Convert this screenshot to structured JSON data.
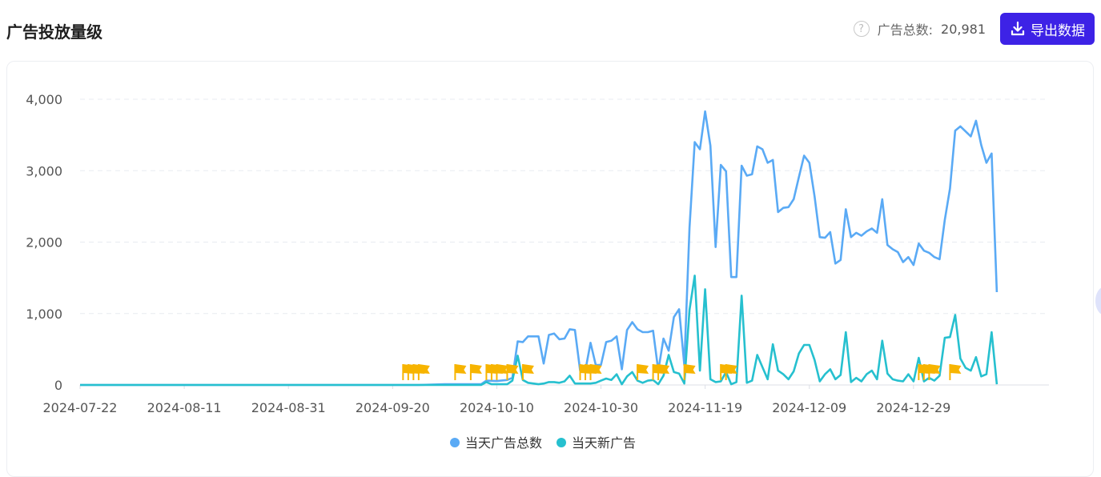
{
  "header": {
    "title": "广告投放量级",
    "total_label": "广告总数:",
    "total_value": "20,981",
    "export_label": "导出数据",
    "export_icon": "download-icon",
    "help_icon": "question-circle-icon"
  },
  "colors": {
    "series_total": "#5aaaf5",
    "series_new": "#26c0cf",
    "flag": "#f7b400",
    "export_button": "#3d22e6"
  },
  "chart_data": {
    "type": "line",
    "title": "",
    "xlabel": "",
    "ylabel": "",
    "ylim": [
      0,
      4000
    ],
    "yticks": [
      0,
      1000,
      2000,
      3000,
      4000
    ],
    "ytick_labels": [
      "0",
      "1,000",
      "2,000",
      "3,000",
      "4,000"
    ],
    "x_start": "2024-07-22",
    "x_end": "2025-01-24",
    "xtick_labels": [
      "2024-07-22",
      "2024-08-11",
      "2024-08-31",
      "2024-09-20",
      "2024-10-10",
      "2024-10-30",
      "2024-11-19",
      "2024-12-09",
      "2024-12-29"
    ],
    "grid": true,
    "legend_position": "bottom",
    "series": [
      {
        "name": "当天广告总数",
        "color": "#5aaaf5",
        "points": [
          [
            "2024-07-22",
            0
          ],
          [
            "2024-09-25",
            0
          ],
          [
            "2024-09-30",
            10
          ],
          [
            "2024-10-07",
            10
          ],
          [
            "2024-10-08",
            60
          ],
          [
            "2024-10-10",
            55
          ],
          [
            "2024-10-12",
            70
          ],
          [
            "2024-10-13",
            100
          ],
          [
            "2024-10-14",
            610
          ],
          [
            "2024-10-15",
            600
          ],
          [
            "2024-10-16",
            680
          ],
          [
            "2024-10-18",
            680
          ],
          [
            "2024-10-19",
            300
          ],
          [
            "2024-10-20",
            700
          ],
          [
            "2024-10-21",
            720
          ],
          [
            "2024-10-22",
            640
          ],
          [
            "2024-10-23",
            650
          ],
          [
            "2024-10-24",
            780
          ],
          [
            "2024-10-25",
            770
          ],
          [
            "2024-10-26",
            200
          ],
          [
            "2024-10-27",
            200
          ],
          [
            "2024-10-28",
            590
          ],
          [
            "2024-10-29",
            280
          ],
          [
            "2024-10-30",
            280
          ],
          [
            "2024-10-31",
            600
          ],
          [
            "2024-11-01",
            620
          ],
          [
            "2024-11-02",
            680
          ],
          [
            "2024-11-03",
            220
          ],
          [
            "2024-11-04",
            770
          ],
          [
            "2024-11-05",
            880
          ],
          [
            "2024-11-06",
            780
          ],
          [
            "2024-11-07",
            740
          ],
          [
            "2024-11-08",
            740
          ],
          [
            "2024-11-09",
            760
          ],
          [
            "2024-11-10",
            200
          ],
          [
            "2024-11-11",
            650
          ],
          [
            "2024-11-12",
            480
          ],
          [
            "2024-11-13",
            950
          ],
          [
            "2024-11-14",
            1060
          ],
          [
            "2024-11-15",
            280
          ],
          [
            "2024-11-16",
            2200
          ],
          [
            "2024-11-17",
            3400
          ],
          [
            "2024-11-18",
            3300
          ],
          [
            "2024-11-19",
            3830
          ],
          [
            "2024-11-20",
            3350
          ],
          [
            "2024-11-21",
            1930
          ],
          [
            "2024-11-22",
            3080
          ],
          [
            "2024-11-23",
            2990
          ],
          [
            "2024-11-24",
            1510
          ],
          [
            "2024-11-25",
            1510
          ],
          [
            "2024-11-26",
            3070
          ],
          [
            "2024-11-27",
            2930
          ],
          [
            "2024-11-28",
            2950
          ],
          [
            "2024-11-29",
            3340
          ],
          [
            "2024-11-30",
            3300
          ],
          [
            "2024-12-01",
            3110
          ],
          [
            "2024-12-02",
            3150
          ],
          [
            "2024-12-03",
            2420
          ],
          [
            "2024-12-04",
            2480
          ],
          [
            "2024-12-05",
            2490
          ],
          [
            "2024-12-06",
            2600
          ],
          [
            "2024-12-07",
            2910
          ],
          [
            "2024-12-08",
            3210
          ],
          [
            "2024-12-09",
            3110
          ],
          [
            "2024-12-10",
            2640
          ],
          [
            "2024-12-11",
            2070
          ],
          [
            "2024-12-12",
            2060
          ],
          [
            "2024-12-13",
            2140
          ],
          [
            "2024-12-14",
            1700
          ],
          [
            "2024-12-15",
            1750
          ],
          [
            "2024-12-16",
            2460
          ],
          [
            "2024-12-17",
            2070
          ],
          [
            "2024-12-18",
            2130
          ],
          [
            "2024-12-19",
            2090
          ],
          [
            "2024-12-20",
            2150
          ],
          [
            "2024-12-21",
            2190
          ],
          [
            "2024-12-22",
            2130
          ],
          [
            "2024-12-23",
            2600
          ],
          [
            "2024-12-24",
            1960
          ],
          [
            "2024-12-25",
            1900
          ],
          [
            "2024-12-26",
            1860
          ],
          [
            "2024-12-27",
            1720
          ],
          [
            "2024-12-28",
            1790
          ],
          [
            "2024-12-29",
            1680
          ],
          [
            "2024-12-30",
            1980
          ],
          [
            "2024-12-31",
            1880
          ],
          [
            "2025-01-01",
            1850
          ],
          [
            "2025-01-02",
            1790
          ],
          [
            "2025-01-03",
            1760
          ],
          [
            "2025-01-04",
            2310
          ],
          [
            "2025-01-05",
            2750
          ],
          [
            "2025-01-06",
            3560
          ],
          [
            "2025-01-07",
            3620
          ],
          [
            "2025-01-08",
            3550
          ],
          [
            "2025-01-09",
            3480
          ],
          [
            "2025-01-10",
            3700
          ],
          [
            "2025-01-11",
            3360
          ],
          [
            "2025-01-12",
            3110
          ],
          [
            "2025-01-13",
            3240
          ],
          [
            "2025-01-14",
            1300
          ]
        ]
      },
      {
        "name": "当天新广告",
        "color": "#26c0cf",
        "points": [
          [
            "2024-07-22",
            0
          ],
          [
            "2024-10-07",
            0
          ],
          [
            "2024-10-08",
            40
          ],
          [
            "2024-10-09",
            10
          ],
          [
            "2024-10-12",
            10
          ],
          [
            "2024-10-13",
            60
          ],
          [
            "2024-10-14",
            410
          ],
          [
            "2024-10-15",
            70
          ],
          [
            "2024-10-16",
            30
          ],
          [
            "2024-10-18",
            10
          ],
          [
            "2024-10-19",
            20
          ],
          [
            "2024-10-20",
            40
          ],
          [
            "2024-10-21",
            40
          ],
          [
            "2024-10-22",
            30
          ],
          [
            "2024-10-23",
            50
          ],
          [
            "2024-10-24",
            130
          ],
          [
            "2024-10-25",
            20
          ],
          [
            "2024-10-28",
            20
          ],
          [
            "2024-10-29",
            30
          ],
          [
            "2024-10-30",
            60
          ],
          [
            "2024-10-31",
            90
          ],
          [
            "2024-11-01",
            70
          ],
          [
            "2024-11-02",
            150
          ],
          [
            "2024-11-03",
            10
          ],
          [
            "2024-11-04",
            120
          ],
          [
            "2024-11-05",
            180
          ],
          [
            "2024-11-06",
            60
          ],
          [
            "2024-11-07",
            30
          ],
          [
            "2024-11-08",
            60
          ],
          [
            "2024-11-09",
            70
          ],
          [
            "2024-11-10",
            10
          ],
          [
            "2024-11-11",
            130
          ],
          [
            "2024-11-12",
            420
          ],
          [
            "2024-11-13",
            180
          ],
          [
            "2024-11-14",
            160
          ],
          [
            "2024-11-15",
            20
          ],
          [
            "2024-11-16",
            1050
          ],
          [
            "2024-11-17",
            1530
          ],
          [
            "2024-11-18",
            200
          ],
          [
            "2024-11-19",
            1340
          ],
          [
            "2024-11-20",
            80
          ],
          [
            "2024-11-21",
            40
          ],
          [
            "2024-11-22",
            50
          ],
          [
            "2024-11-23",
            180
          ],
          [
            "2024-11-24",
            10
          ],
          [
            "2024-11-25",
            40
          ],
          [
            "2024-11-26",
            1250
          ],
          [
            "2024-11-27",
            30
          ],
          [
            "2024-11-28",
            60
          ],
          [
            "2024-11-29",
            420
          ],
          [
            "2024-11-30",
            250
          ],
          [
            "2024-12-01",
            80
          ],
          [
            "2024-12-02",
            570
          ],
          [
            "2024-12-03",
            200
          ],
          [
            "2024-12-04",
            150
          ],
          [
            "2024-12-05",
            80
          ],
          [
            "2024-12-06",
            190
          ],
          [
            "2024-12-07",
            440
          ],
          [
            "2024-12-08",
            560
          ],
          [
            "2024-12-09",
            560
          ],
          [
            "2024-12-10",
            350
          ],
          [
            "2024-12-11",
            50
          ],
          [
            "2024-12-12",
            150
          ],
          [
            "2024-12-13",
            220
          ],
          [
            "2024-12-14",
            80
          ],
          [
            "2024-12-15",
            140
          ],
          [
            "2024-12-16",
            740
          ],
          [
            "2024-12-17",
            40
          ],
          [
            "2024-12-18",
            100
          ],
          [
            "2024-12-19",
            50
          ],
          [
            "2024-12-20",
            150
          ],
          [
            "2024-12-21",
            200
          ],
          [
            "2024-12-22",
            80
          ],
          [
            "2024-12-23",
            620
          ],
          [
            "2024-12-24",
            160
          ],
          [
            "2024-12-25",
            80
          ],
          [
            "2024-12-26",
            60
          ],
          [
            "2024-12-27",
            50
          ],
          [
            "2024-12-28",
            150
          ],
          [
            "2024-12-29",
            50
          ],
          [
            "2024-12-30",
            380
          ],
          [
            "2024-12-31",
            50
          ],
          [
            "2025-01-01",
            100
          ],
          [
            "2025-01-02",
            60
          ],
          [
            "2025-01-03",
            130
          ],
          [
            "2025-01-04",
            660
          ],
          [
            "2025-01-05",
            670
          ],
          [
            "2025-01-06",
            980
          ],
          [
            "2025-01-07",
            370
          ],
          [
            "2025-01-08",
            240
          ],
          [
            "2025-01-09",
            200
          ],
          [
            "2025-01-10",
            390
          ],
          [
            "2025-01-11",
            120
          ],
          [
            "2025-01-12",
            150
          ],
          [
            "2025-01-13",
            740
          ],
          [
            "2025-01-14",
            10
          ]
        ]
      }
    ],
    "markers": {
      "icon": "flag-icon",
      "dates": [
        "2024-09-22",
        "2024-09-23",
        "2024-09-24",
        "2024-09-25",
        "2024-10-02",
        "2024-10-05",
        "2024-10-08",
        "2024-10-09",
        "2024-10-10",
        "2024-10-12",
        "2024-10-15",
        "2024-10-26",
        "2024-10-27",
        "2024-10-28",
        "2024-11-06",
        "2024-11-09",
        "2024-11-10",
        "2024-11-15",
        "2024-11-22",
        "2024-11-23",
        "2024-12-30",
        "2024-12-31",
        "2025-01-01",
        "2025-01-05"
      ]
    }
  }
}
